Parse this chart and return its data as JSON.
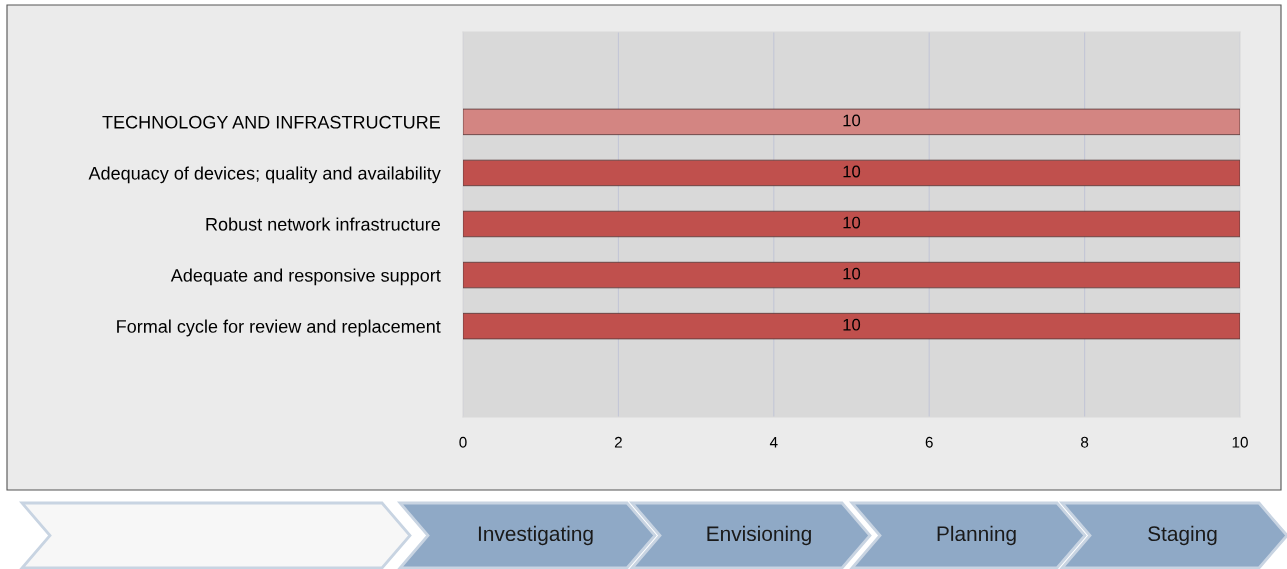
{
  "chart_data": {
    "type": "bar",
    "orientation": "horizontal",
    "categories": [
      "TECHNOLOGY AND INFRASTRUCTURE",
      "Adequacy of devices; quality and availability",
      "Robust network infrastructure",
      "Adequate and responsive support",
      "Formal cycle for review and replacement"
    ],
    "values": [
      10,
      10,
      10,
      10,
      10
    ],
    "colors": [
      "#d38582",
      "#c0504d",
      "#c0504d",
      "#c0504d",
      "#c0504d"
    ],
    "xlim": [
      0,
      10
    ],
    "xticks": [
      0,
      2,
      4,
      6,
      8,
      10
    ],
    "grid": "x",
    "data_labels": true,
    "legend": false,
    "annotations": [
      "Investigating",
      "Envisioning",
      "Planning",
      "Staging"
    ]
  }
}
